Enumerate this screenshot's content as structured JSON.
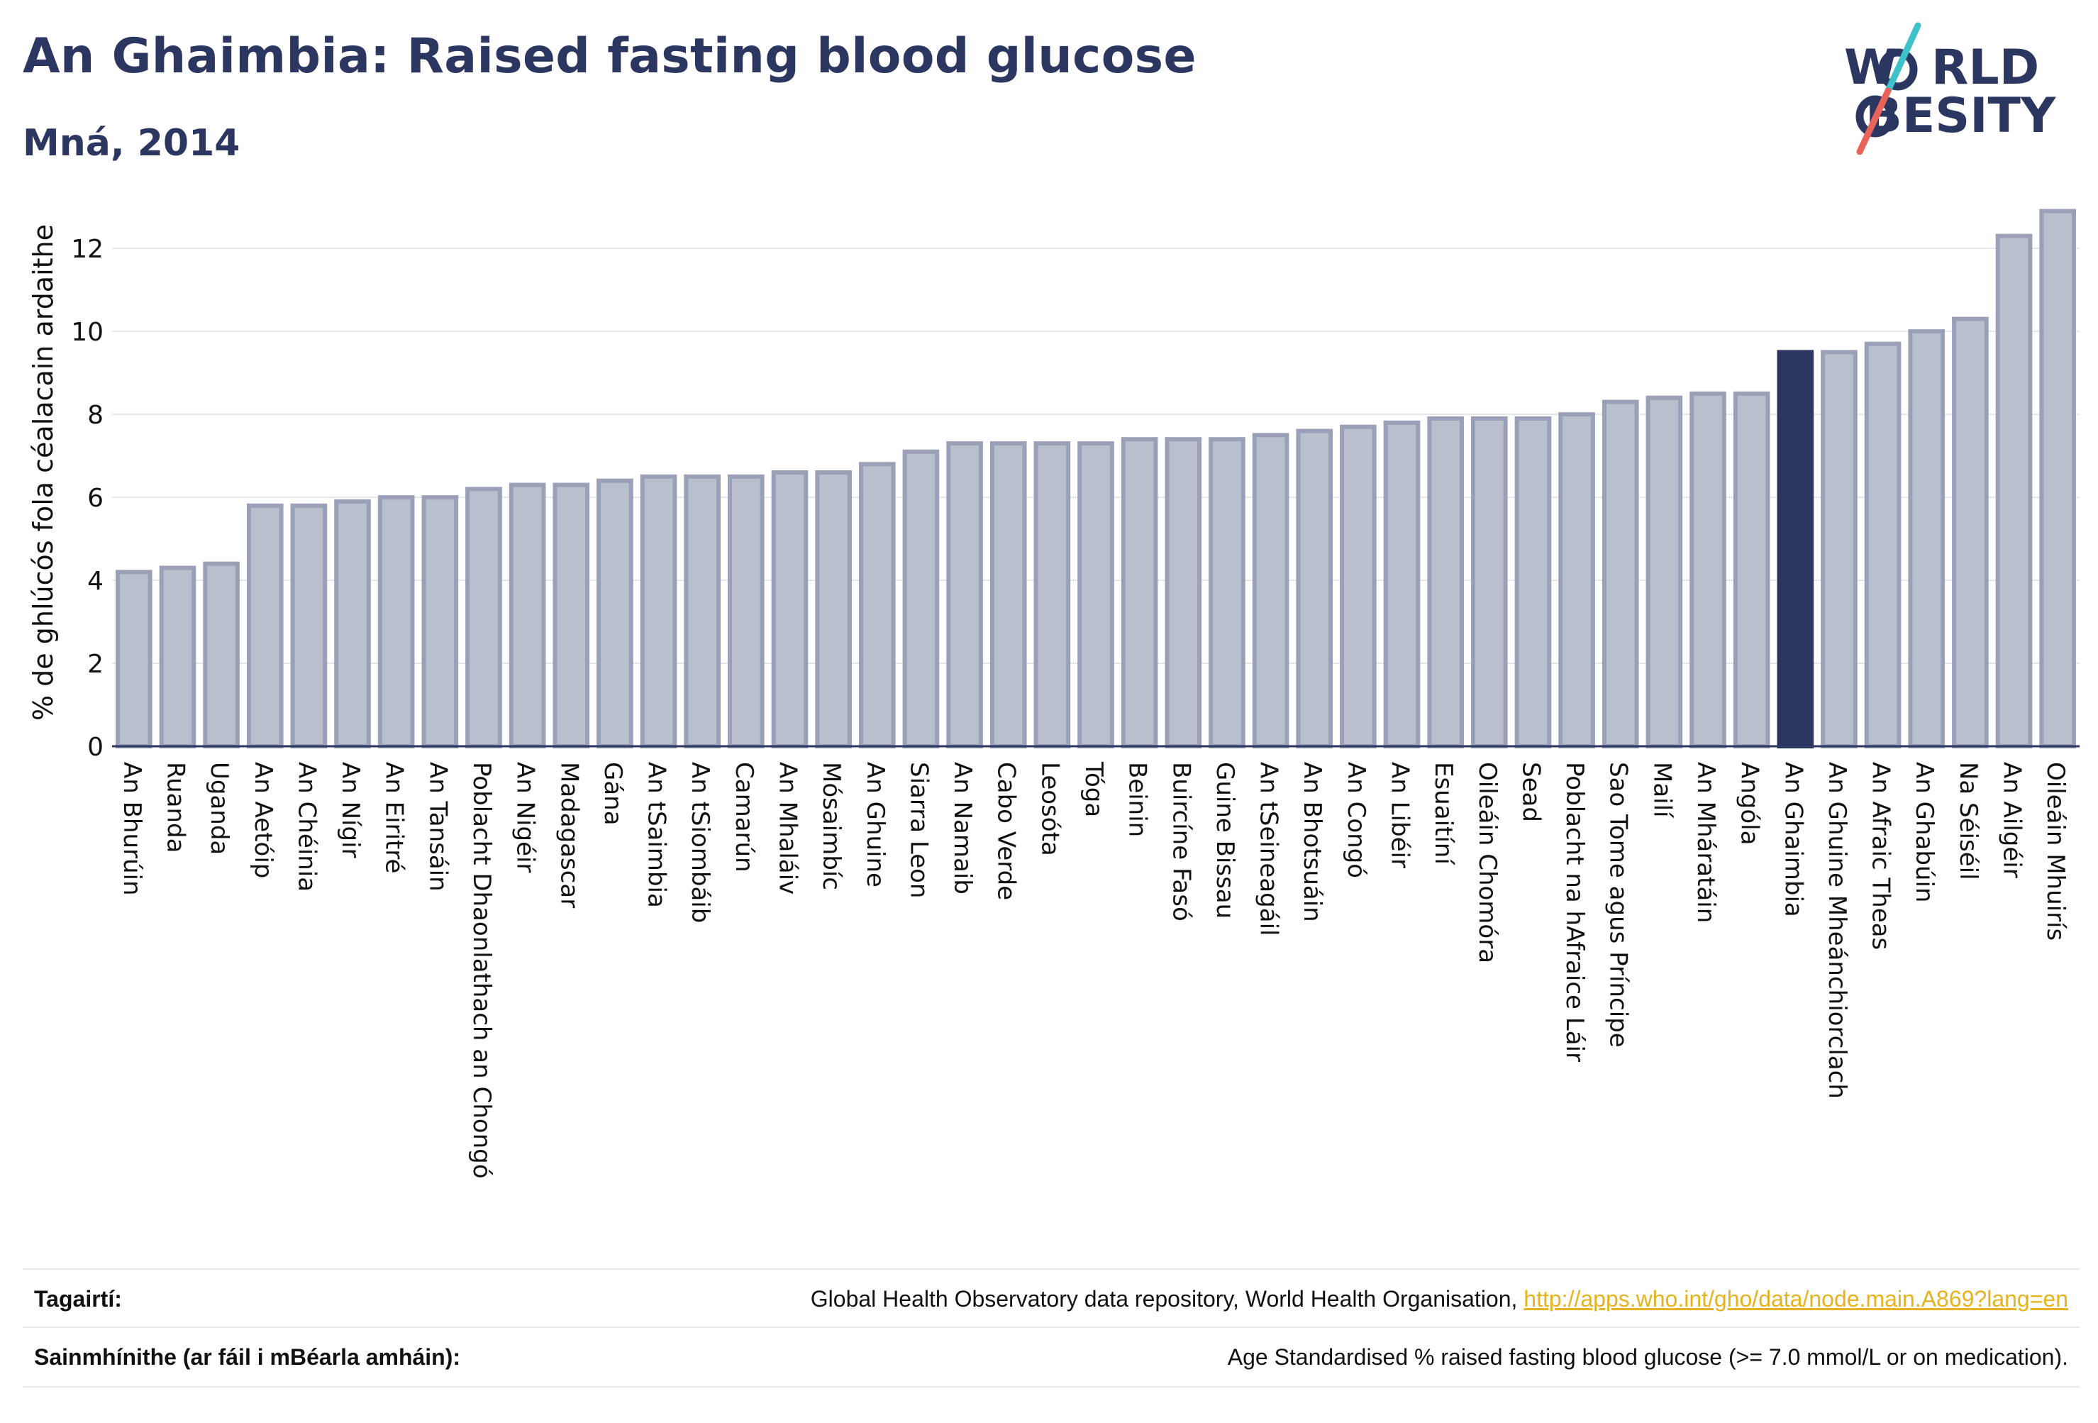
{
  "title": "An Ghaimbia: Raised fasting blood glucose",
  "subtitle": "Mná, 2014",
  "logo": {
    "line1": "W",
    "line1b": "RLD",
    "line2": "BESITY"
  },
  "footer": {
    "references_label": "Tagairtí:",
    "references_text": "Global Health Observatory data repository, World Health Organisation, ",
    "references_link": "http://apps.who.int/gho/data/node.main.A869?lang=en",
    "definitions_label": "Sainmhínithe (ar fáil i mBéarla amháin):",
    "definitions_text": "Age Standardised % raised fasting blood glucose (>= 7.0 mmol/L or on medication)."
  },
  "colors": {
    "bar_fill": "#babfcd",
    "bar_stroke": "#9aa0b8",
    "highlight": "#2b3661",
    "title": "#2b3661",
    "logo_teal": "#3cc2c8",
    "logo_red": "#e8645a"
  },
  "chart_data": {
    "type": "bar",
    "ylabel": "% de ghlúcós fola céalacain ardaithe",
    "ylim": [
      0,
      13.2
    ],
    "yticks": [
      0,
      2,
      4,
      6,
      8,
      10,
      12
    ],
    "grid": true,
    "highlight": "An Ghaimbia",
    "categories": [
      "An Bhurúin",
      "Ruanda",
      "Uganda",
      "An Aetóip",
      "An Chéinia",
      "An Nígir",
      "An Eiritré",
      "An Tansáin",
      "Poblacht Dhaonlathach an Chongó",
      "An Nigéir",
      "Madagascar",
      "Gána",
      "An tSaimbia",
      "An tSiombáib",
      "Camarún",
      "An Mhaláiv",
      "Mósaimbíc",
      "An Ghuine",
      "Siarra Leon",
      "An Namaib",
      "Cabo Verde",
      "Leosóta",
      "Tóga",
      "Beinin",
      "Buircíne Fasó",
      "Guine Bissau",
      "An tSeineagáil",
      "An Bhotsuáin",
      "An Congó",
      "An Libéir",
      "Esuaitíní",
      "Oileáin Chomóra",
      "Sead",
      "Poblacht na hAfraice Láir",
      "Sao Tome agus Príncipe",
      "Mailí",
      "An Mháratáin",
      "Angóla",
      "An Ghaimbia",
      "An Ghuine Mheánchiorclach",
      "An Afraic Theas",
      "An Ghabúin",
      "Na Séiséil",
      "An Ailgéir",
      "Oileáin Mhuirís"
    ],
    "values": [
      4.2,
      4.3,
      4.4,
      5.8,
      5.8,
      5.9,
      6.0,
      6.0,
      6.2,
      6.3,
      6.3,
      6.4,
      6.5,
      6.5,
      6.5,
      6.6,
      6.6,
      6.8,
      7.1,
      7.3,
      7.3,
      7.3,
      7.3,
      7.4,
      7.4,
      7.4,
      7.5,
      7.6,
      7.7,
      7.8,
      7.9,
      7.9,
      7.9,
      8.0,
      8.3,
      8.4,
      8.5,
      8.5,
      9.5,
      9.5,
      9.7,
      10.0,
      10.3,
      12.3,
      12.9
    ]
  }
}
